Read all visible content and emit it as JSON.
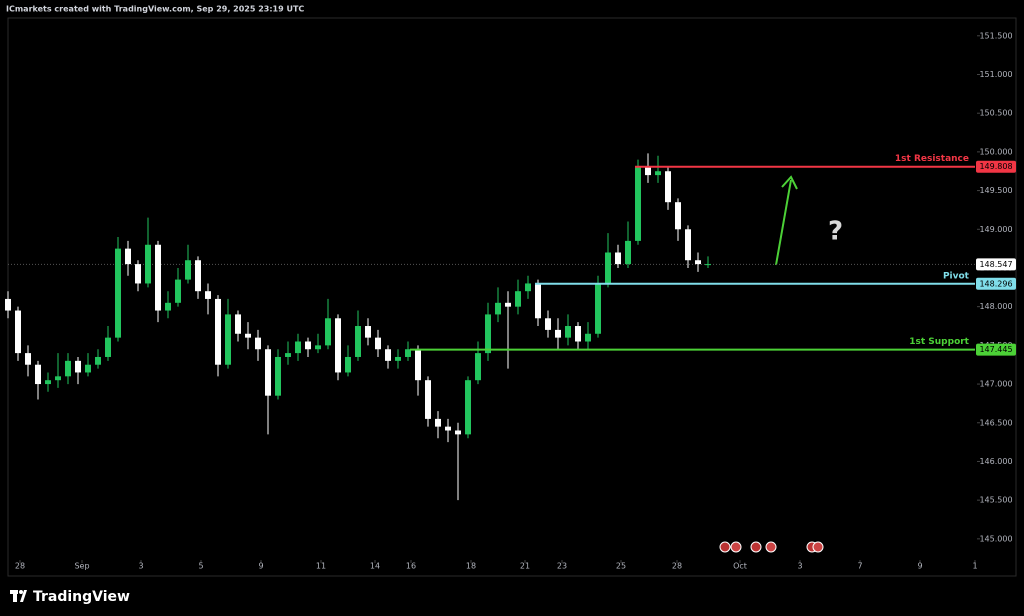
{
  "chart_data": {
    "type": "candlestick",
    "header": "ICmarkets created with TradingView.com, Sep 29, 2025 23:19 UTC",
    "branding": "TradingView",
    "annotation": "?",
    "up_color": "#22c55e",
    "down_color": "#ffffff",
    "xlim": [
      0,
      96.7
    ],
    "ylim": [
      144.52,
      151.73
    ],
    "x": [
      0,
      1,
      2,
      3,
      4,
      5,
      6,
      7,
      8,
      9,
      10,
      11,
      12,
      13,
      14,
      15,
      16,
      17,
      18,
      19,
      20,
      21,
      22,
      23,
      24,
      25,
      26,
      27,
      28,
      29,
      30,
      31,
      32,
      33,
      34,
      35,
      36,
      37,
      38,
      39,
      40,
      41,
      42,
      43,
      44,
      45,
      46,
      47,
      48,
      49,
      50,
      51,
      52,
      53,
      54,
      55,
      56,
      57,
      58,
      59,
      60,
      61,
      62,
      63,
      64,
      65,
      66,
      67,
      68,
      69,
      70
    ],
    "open": [
      148.1,
      147.95,
      147.4,
      147.25,
      147.0,
      147.05,
      147.1,
      147.3,
      147.15,
      147.25,
      147.35,
      147.6,
      148.75,
      148.55,
      148.3,
      148.8,
      147.95,
      148.05,
      148.35,
      148.6,
      148.2,
      148.1,
      147.25,
      147.9,
      147.65,
      147.6,
      147.45,
      146.85,
      147.35,
      147.4,
      147.55,
      147.45,
      147.5,
      147.85,
      147.15,
      147.35,
      147.75,
      147.6,
      147.45,
      147.3,
      147.35,
      147.45,
      147.05,
      146.55,
      146.45,
      146.4,
      146.35,
      147.05,
      147.4,
      147.9,
      148.05,
      148.0,
      148.2,
      148.3,
      147.85,
      147.7,
      147.6,
      147.75,
      147.55,
      147.65,
      148.3,
      148.7,
      148.55,
      148.85,
      149.8,
      149.7,
      149.75,
      149.35,
      149.0,
      148.6,
      148.55
    ],
    "high": [
      148.2,
      148.0,
      147.5,
      147.3,
      147.15,
      147.4,
      147.4,
      147.35,
      147.4,
      147.45,
      147.75,
      148.9,
      148.85,
      148.6,
      149.15,
      148.85,
      148.2,
      148.5,
      148.8,
      148.65,
      148.3,
      148.15,
      148.1,
      147.95,
      147.8,
      147.7,
      147.5,
      147.45,
      147.55,
      147.65,
      147.6,
      147.65,
      148.1,
      147.9,
      147.5,
      147.95,
      147.85,
      147.7,
      147.5,
      147.45,
      147.55,
      147.5,
      147.1,
      146.65,
      146.55,
      146.5,
      147.1,
      147.55,
      148.05,
      148.25,
      148.2,
      148.35,
      148.4,
      148.35,
      147.95,
      147.85,
      147.9,
      147.8,
      147.8,
      148.4,
      148.95,
      148.8,
      149.1,
      149.9,
      149.98,
      149.95,
      149.8,
      149.4,
      149.05,
      148.7,
      148.65
    ],
    "low": [
      147.85,
      147.3,
      147.1,
      146.8,
      146.9,
      146.95,
      147.0,
      147.0,
      147.1,
      147.2,
      147.3,
      147.55,
      148.4,
      148.2,
      148.25,
      147.8,
      147.85,
      148.0,
      148.3,
      148.1,
      147.9,
      147.1,
      147.2,
      147.55,
      147.45,
      147.3,
      146.35,
      146.8,
      147.25,
      147.3,
      147.35,
      147.4,
      147.45,
      147.05,
      147.1,
      147.3,
      147.5,
      147.35,
      147.2,
      147.2,
      147.3,
      146.85,
      146.45,
      146.3,
      146.25,
      145.5,
      146.3,
      147.0,
      147.3,
      147.8,
      147.2,
      147.9,
      148.1,
      147.75,
      147.6,
      147.45,
      147.5,
      147.45,
      147.45,
      147.6,
      148.25,
      148.5,
      148.5,
      148.8,
      149.6,
      149.6,
      149.25,
      148.85,
      148.5,
      148.45,
      148.5
    ],
    "close": [
      147.95,
      147.4,
      147.25,
      147.0,
      147.05,
      147.1,
      147.3,
      147.15,
      147.25,
      147.35,
      147.6,
      148.75,
      148.55,
      148.3,
      148.8,
      147.95,
      148.05,
      148.35,
      148.6,
      148.2,
      148.1,
      147.25,
      147.9,
      147.65,
      147.6,
      147.45,
      146.85,
      147.35,
      147.4,
      147.55,
      147.45,
      147.5,
      147.85,
      147.15,
      147.35,
      147.75,
      147.6,
      147.45,
      147.3,
      147.35,
      147.45,
      147.05,
      146.55,
      146.45,
      146.4,
      146.35,
      147.05,
      147.4,
      147.9,
      148.05,
      148.0,
      148.2,
      148.3,
      147.85,
      147.7,
      147.6,
      147.75,
      147.55,
      147.65,
      148.3,
      148.7,
      148.55,
      148.85,
      149.8,
      149.7,
      149.75,
      149.35,
      149.0,
      148.6,
      148.55,
      148.55
    ],
    "levels": [
      {
        "name": "1st Resistance",
        "value": 149.808,
        "color": "#f23645",
        "x_start": 62.7
      },
      {
        "name": "Pivot",
        "value": 148.296,
        "color": "#80deea",
        "x_start": 52.7
      },
      {
        "name": "1st Support",
        "value": 147.445,
        "color": "#4cd137",
        "x_start": 40.2
      }
    ],
    "last_price": 148.547,
    "yticks": [
      {
        "value": 145,
        "label": "145.000"
      },
      {
        "value": 145.5,
        "label": "145.500"
      },
      {
        "value": 146,
        "label": "146.000"
      },
      {
        "value": 146.5,
        "label": "146.500"
      },
      {
        "value": 147,
        "label": "147.000"
      },
      {
        "value": 147.5,
        "label": "147.500"
      },
      {
        "value": 148,
        "label": "148.000"
      },
      {
        "value": 148.5,
        "label": "148.500"
      },
      {
        "value": 149,
        "label": "149.000"
      },
      {
        "value": 149.5,
        "label": "149.500"
      },
      {
        "value": 150,
        "label": "150.000"
      },
      {
        "value": 150.5,
        "label": "150.500"
      },
      {
        "value": 151,
        "label": "151.000"
      },
      {
        "value": 151.5,
        "label": "151.500"
      }
    ],
    "xticks": [
      {
        "value": 1.2,
        "label": "28"
      },
      {
        "value": 7.4,
        "label": "Sep"
      },
      {
        "value": 13.3,
        "label": "3"
      },
      {
        "value": 19.3,
        "label": "5"
      },
      {
        "value": 25.3,
        "label": "9"
      },
      {
        "value": 31.3,
        "label": "11"
      },
      {
        "value": 36.7,
        "label": "14"
      },
      {
        "value": 40.3,
        "label": "16"
      },
      {
        "value": 46.3,
        "label": "18"
      },
      {
        "value": 51.7,
        "label": "21"
      },
      {
        "value": 55.4,
        "label": "23"
      },
      {
        "value": 61.3,
        "label": "25"
      },
      {
        "value": 66.9,
        "label": "28"
      },
      {
        "value": 73.2,
        "label": "Oct"
      },
      {
        "value": 79.2,
        "label": "3"
      },
      {
        "value": 85.2,
        "label": "7"
      },
      {
        "value": 91.2,
        "label": "9"
      },
      {
        "value": 96.7,
        "label": "1"
      }
    ]
  }
}
